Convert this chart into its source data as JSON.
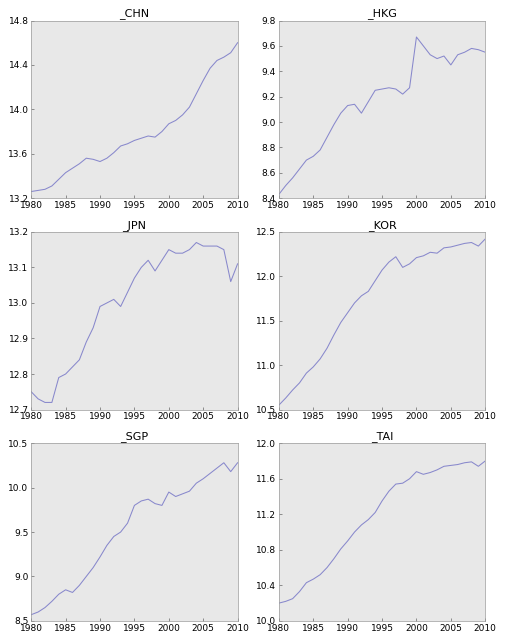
{
  "panels": [
    {
      "label": "_CHN",
      "xlim": [
        1980,
        2010
      ],
      "ylim": [
        13.2,
        14.8
      ],
      "yticks": [
        13.2,
        13.6,
        14.0,
        14.4,
        14.8
      ],
      "xticks": [
        1980,
        1985,
        1990,
        1995,
        2000,
        2005,
        2010
      ],
      "data_x": [
        1980,
        1981,
        1982,
        1983,
        1984,
        1985,
        1986,
        1987,
        1988,
        1989,
        1990,
        1991,
        1992,
        1993,
        1994,
        1995,
        1996,
        1997,
        1998,
        1999,
        2000,
        2001,
        2002,
        2003,
        2004,
        2005,
        2006,
        2007,
        2008,
        2009,
        2010
      ],
      "data_y": [
        13.26,
        13.27,
        13.28,
        13.31,
        13.37,
        13.43,
        13.47,
        13.51,
        13.56,
        13.55,
        13.53,
        13.56,
        13.61,
        13.67,
        13.69,
        13.72,
        13.74,
        13.76,
        13.75,
        13.8,
        13.87,
        13.9,
        13.95,
        14.02,
        14.14,
        14.26,
        14.37,
        14.44,
        14.47,
        14.51,
        14.6
      ]
    },
    {
      "label": "_HKG",
      "xlim": [
        1980,
        2010
      ],
      "ylim": [
        8.4,
        9.8
      ],
      "yticks": [
        8.4,
        8.6,
        8.8,
        9.0,
        9.2,
        9.4,
        9.6,
        9.8
      ],
      "xticks": [
        1980,
        1985,
        1990,
        1995,
        2000,
        2005,
        2010
      ],
      "data_x": [
        1980,
        1981,
        1982,
        1983,
        1984,
        1985,
        1986,
        1987,
        1988,
        1989,
        1990,
        1991,
        1992,
        1993,
        1994,
        1995,
        1996,
        1997,
        1998,
        1999,
        2000,
        2001,
        2002,
        2003,
        2004,
        2005,
        2006,
        2007,
        2008,
        2009,
        2010
      ],
      "data_y": [
        8.43,
        8.5,
        8.56,
        8.63,
        8.7,
        8.73,
        8.78,
        8.88,
        8.98,
        9.07,
        9.13,
        9.14,
        9.07,
        9.16,
        9.25,
        9.26,
        9.27,
        9.26,
        9.22,
        9.27,
        9.67,
        9.6,
        9.53,
        9.5,
        9.52,
        9.45,
        9.53,
        9.55,
        9.58,
        9.57,
        9.55
      ]
    },
    {
      "label": "_JPN",
      "xlim": [
        1980,
        2010
      ],
      "ylim": [
        12.7,
        13.2
      ],
      "yticks": [
        12.7,
        12.8,
        12.9,
        13.0,
        13.1,
        13.2
      ],
      "xticks": [
        1980,
        1985,
        1990,
        1995,
        2000,
        2005,
        2010
      ],
      "data_x": [
        1980,
        1981,
        1982,
        1983,
        1984,
        1985,
        1986,
        1987,
        1988,
        1989,
        1990,
        1991,
        1992,
        1993,
        1994,
        1995,
        1996,
        1997,
        1998,
        1999,
        2000,
        2001,
        2002,
        2003,
        2004,
        2005,
        2006,
        2007,
        2008,
        2009,
        2010
      ],
      "data_y": [
        12.75,
        12.73,
        12.72,
        12.72,
        12.79,
        12.8,
        12.82,
        12.84,
        12.89,
        12.93,
        12.99,
        13.0,
        13.01,
        12.99,
        13.03,
        13.07,
        13.1,
        13.12,
        13.09,
        13.12,
        13.15,
        13.14,
        13.14,
        13.15,
        13.17,
        13.16,
        13.16,
        13.16,
        13.15,
        13.06,
        13.11
      ]
    },
    {
      "label": "_KOR",
      "xlim": [
        1980,
        2010
      ],
      "ylim": [
        10.5,
        12.5
      ],
      "yticks": [
        10.5,
        11.0,
        11.5,
        12.0,
        12.5
      ],
      "xticks": [
        1980,
        1985,
        1990,
        1995,
        2000,
        2005,
        2010
      ],
      "data_x": [
        1980,
        1981,
        1982,
        1983,
        1984,
        1985,
        1986,
        1987,
        1988,
        1989,
        1990,
        1991,
        1992,
        1993,
        1994,
        1995,
        1996,
        1997,
        1998,
        1999,
        2000,
        2001,
        2002,
        2003,
        2004,
        2005,
        2006,
        2007,
        2008,
        2009,
        2010
      ],
      "data_y": [
        10.55,
        10.63,
        10.72,
        10.8,
        10.91,
        10.98,
        11.07,
        11.19,
        11.34,
        11.48,
        11.59,
        11.7,
        11.78,
        11.83,
        11.95,
        12.07,
        12.16,
        12.22,
        12.1,
        12.14,
        12.21,
        12.23,
        12.27,
        12.26,
        12.32,
        12.33,
        12.35,
        12.37,
        12.38,
        12.34,
        12.42
      ]
    },
    {
      "label": "_SGP",
      "xlim": [
        1980,
        2010
      ],
      "ylim": [
        8.5,
        10.5
      ],
      "yticks": [
        8.5,
        9.0,
        9.5,
        10.0,
        10.5
      ],
      "xticks": [
        1980,
        1985,
        1990,
        1995,
        2000,
        2005,
        2010
      ],
      "data_x": [
        1980,
        1981,
        1982,
        1983,
        1984,
        1985,
        1986,
        1987,
        1988,
        1989,
        1990,
        1991,
        1992,
        1993,
        1994,
        1995,
        1996,
        1997,
        1998,
        1999,
        2000,
        2001,
        2002,
        2003,
        2004,
        2005,
        2006,
        2007,
        2008,
        2009,
        2010
      ],
      "data_y": [
        8.57,
        8.6,
        8.65,
        8.72,
        8.8,
        8.85,
        8.82,
        8.9,
        9.0,
        9.1,
        9.22,
        9.35,
        9.45,
        9.5,
        9.6,
        9.8,
        9.85,
        9.87,
        9.82,
        9.8,
        9.95,
        9.9,
        9.93,
        9.96,
        10.05,
        10.1,
        10.16,
        10.22,
        10.28,
        10.18,
        10.28
      ]
    },
    {
      "label": "_TAI",
      "xlim": [
        1980,
        2010
      ],
      "ylim": [
        10.0,
        12.0
      ],
      "yticks": [
        10.0,
        10.4,
        10.8,
        11.2,
        11.6,
        12.0
      ],
      "xticks": [
        1980,
        1985,
        1990,
        1995,
        2000,
        2005,
        2010
      ],
      "data_x": [
        1980,
        1981,
        1982,
        1983,
        1984,
        1985,
        1986,
        1987,
        1988,
        1989,
        1990,
        1991,
        1992,
        1993,
        1994,
        1995,
        1996,
        1997,
        1998,
        1999,
        2000,
        2001,
        2002,
        2003,
        2004,
        2005,
        2006,
        2007,
        2008,
        2009,
        2010
      ],
      "data_y": [
        10.2,
        10.22,
        10.25,
        10.33,
        10.43,
        10.47,
        10.52,
        10.6,
        10.7,
        10.81,
        10.9,
        11.0,
        11.08,
        11.14,
        11.22,
        11.35,
        11.46,
        11.54,
        11.55,
        11.6,
        11.68,
        11.65,
        11.67,
        11.7,
        11.74,
        11.75,
        11.76,
        11.78,
        11.79,
        11.74,
        11.8
      ]
    }
  ],
  "line_color": "#8888cc",
  "line_width": 0.75,
  "fig_bg_color": "#ffffff",
  "axes_bg_color": "#e8e8e8",
  "tick_fontsize": 6.5,
  "title_fontsize": 8,
  "spine_color": "#999999",
  "spine_lw": 0.5
}
